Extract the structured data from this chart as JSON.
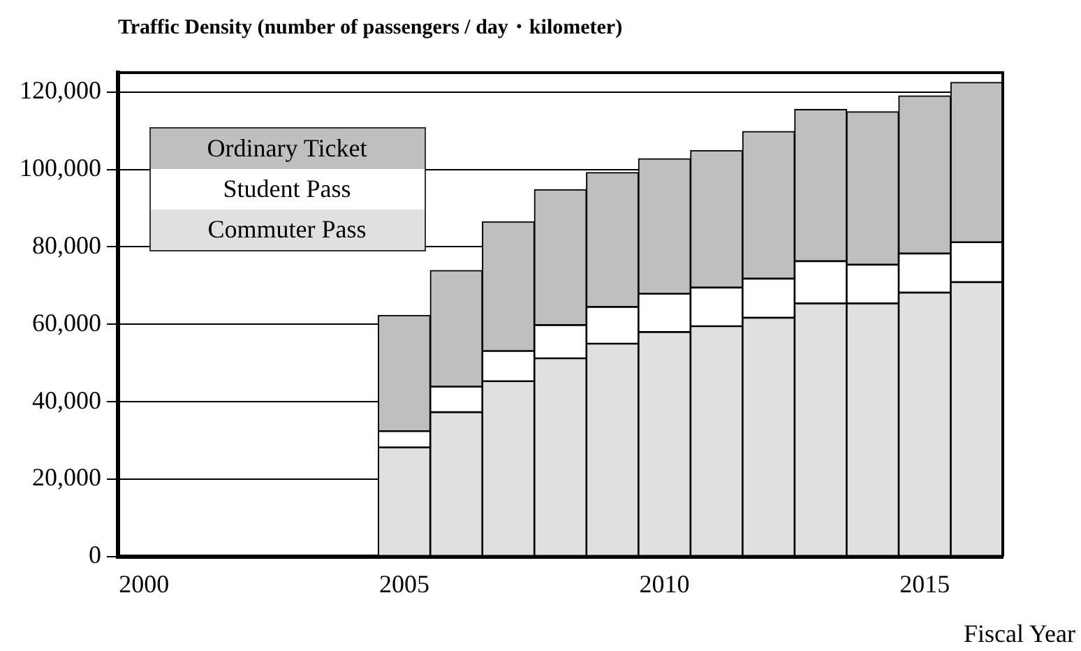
{
  "chart_data": {
    "type": "bar",
    "title": "Traffic Density (number of passengers / day・kilometer)",
    "xlabel": "Fiscal Year",
    "categories": [
      "2000",
      null,
      null,
      null,
      null,
      "2005",
      null,
      null,
      null,
      null,
      "2010",
      null,
      null,
      null,
      null,
      "2015",
      null
    ],
    "stacked": true,
    "ylim": [
      0,
      125000
    ],
    "yticks": [
      0,
      {
        "value": 20000,
        "label": "20,000"
      },
      {
        "value": 40000,
        "label": "40,000"
      },
      {
        "value": 60000,
        "label": "60,000"
      },
      {
        "value": 80000,
        "label": "80,000"
      },
      {
        "value": 100000,
        "label": "100,000"
      },
      {
        "value": 120000,
        "label": "120,000"
      }
    ],
    "grid": "y",
    "legend": "top left",
    "series": [
      {
        "name": "Commuter Pass",
        "color": "#e0e0e0",
        "values": [
          null,
          null,
          null,
          null,
          null,
          28200,
          37300,
          45300,
          51200,
          55000,
          58000,
          59500,
          61700,
          65400,
          65400,
          68200,
          70900
        ]
      },
      {
        "name": "Student Pass",
        "color": "#ffffff",
        "values": [
          null,
          null,
          null,
          null,
          null,
          4200,
          6600,
          7800,
          8600,
          9500,
          9900,
          10000,
          10100,
          10900,
          10000,
          10100,
          10300
        ]
      },
      {
        "name": "Ordinary Ticket",
        "color": "#bfbfbf",
        "values": [
          null,
          null,
          null,
          null,
          null,
          29900,
          30000,
          33400,
          35000,
          34700,
          34900,
          35400,
          38000,
          39200,
          39500,
          40700,
          41300
        ]
      }
    ]
  }
}
